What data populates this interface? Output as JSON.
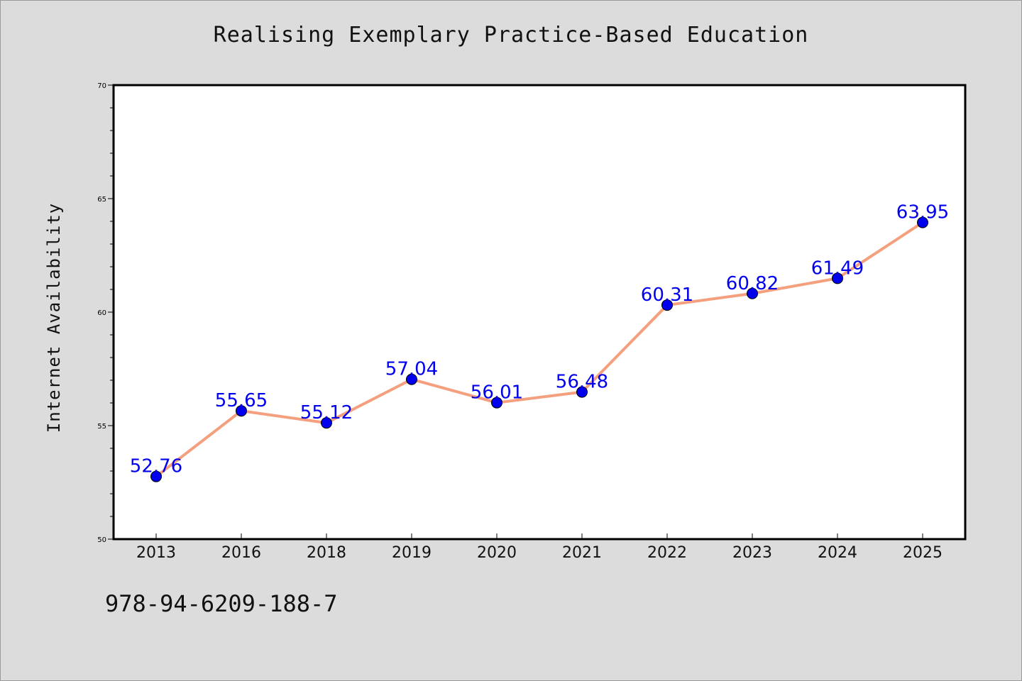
{
  "chart_data": {
    "type": "line",
    "title": "Realising Exemplary Practice-Based Education",
    "xlabel": "",
    "ylabel": "Internet Availability",
    "categories": [
      "2013",
      "2016",
      "2018",
      "2019",
      "2020",
      "2021",
      "2022",
      "2023",
      "2024",
      "2025"
    ],
    "series": [
      {
        "values": [
          52.76,
          55.65,
          55.12,
          57.04,
          56.01,
          56.48,
          60.31,
          60.82,
          61.49,
          63.95
        ],
        "labels": [
          "52.76",
          "55.65",
          "55.12",
          "57.04",
          "56.01",
          "56.48",
          "60.31",
          "60.82",
          "61.49",
          "63.95"
        ],
        "line_color": "#f4a07e",
        "marker_color": "#0000ee"
      }
    ],
    "ylim": [
      50,
      70
    ],
    "yticks": [
      "50",
      "55",
      "60",
      "65",
      "70"
    ],
    "grid": false
  },
  "footer": {
    "code": "978-94-6209-188-7"
  }
}
